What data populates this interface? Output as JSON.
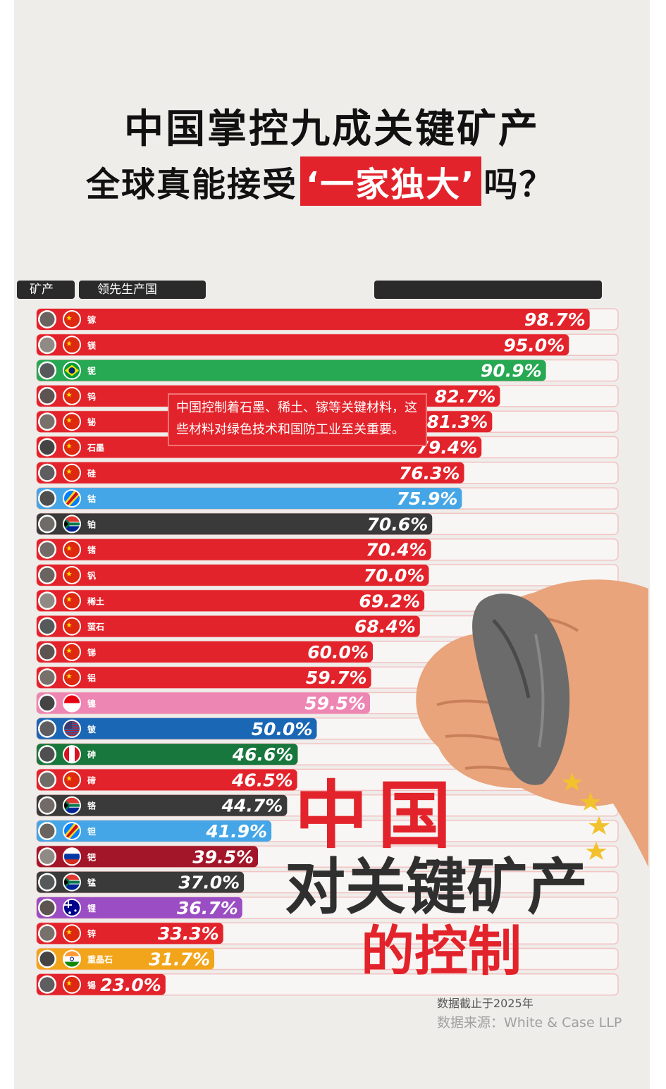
{
  "title": {
    "line1": "中国掌控九成关键矿产",
    "line2_pre": "全球真能接受",
    "line2_highlight": "‘一家独大’",
    "line2_post": "吗？"
  },
  "headers": {
    "mineral": "矿产",
    "country": "领先生产国",
    "share": ""
  },
  "note": "中国控制着石墨、稀土、镓等关键材料，这些材料对绿色技术和国防工业至关重要。",
  "overlay": {
    "line1": "中国",
    "line2": "对关键矿产",
    "line3": "的控制"
  },
  "footer": {
    "date_note": "数据截止于2025年",
    "source": "数据来源：White & Case LLP"
  },
  "colors": {
    "red": "#e3232b",
    "green": "#27a852",
    "light_blue": "#44a6e6",
    "dark": "#3a3a3a",
    "pink": "#ee86b4",
    "blue": "#1a67b5",
    "dark_green": "#18773c",
    "dark_red": "#a3162a",
    "purple": "#9b4dc3",
    "orange": "#f2a51a",
    "background": "#efedea"
  },
  "chart_data": {
    "type": "bar",
    "orientation": "horizontal",
    "unit": "%",
    "xlim": [
      0,
      100
    ],
    "categories": [
      "镓",
      "镁",
      "铌",
      "钨",
      "铋",
      "石墨",
      "硅",
      "钴",
      "铂",
      "锗",
      "钒",
      "稀土",
      "萤石",
      "锑",
      "铝",
      "镍",
      "铍",
      "砷",
      "碲",
      "铬",
      "钽",
      "钯",
      "锰",
      "锂",
      "锌",
      "重晶石",
      "锡"
    ],
    "values": [
      98.7,
      95.0,
      90.9,
      82.7,
      81.3,
      79.4,
      76.3,
      75.9,
      70.6,
      70.4,
      70.0,
      69.2,
      68.4,
      60.0,
      59.7,
      59.5,
      50.0,
      46.6,
      46.5,
      44.7,
      41.9,
      39.5,
      37.0,
      36.7,
      33.3,
      31.7,
      23.0
    ],
    "value_labels": [
      "98.7%",
      "95.0%",
      "90.9%",
      "82.7%",
      "81.3%",
      "79.4%",
      "76.3%",
      "75.9%",
      "70.6%",
      "70.4%",
      "70.0%",
      "69.2%",
      "68.4%",
      "60.0%",
      "59.7%",
      "59.5%",
      "50.0%",
      "46.6%",
      "46.5%",
      "44.7%",
      "41.9%",
      "39.5%",
      "37.0%",
      "36.7%",
      "33.3%",
      "31.7%",
      "23.0%"
    ],
    "leading_country_flags": [
      "china-flag",
      "china-flag",
      "brazil-flag",
      "china-flag",
      "china-flag",
      "china-flag",
      "china-flag",
      "drc-flag",
      "south-africa-flag",
      "china-flag",
      "china-flag",
      "china-flag",
      "china-flag",
      "china-flag",
      "china-flag",
      "indonesia-flag",
      "usa-flag",
      "peru-flag",
      "china-flag",
      "south-africa-flag",
      "drc-flag",
      "russia-flag",
      "south-africa-flag",
      "australia-flag",
      "china-flag",
      "india-flag",
      "china-flag"
    ],
    "bar_colors": [
      "red",
      "red",
      "green",
      "red",
      "red",
      "red",
      "red",
      "light_blue",
      "dark",
      "red",
      "red",
      "red",
      "red",
      "red",
      "red",
      "pink",
      "blue",
      "dark_green",
      "red",
      "dark",
      "light_blue",
      "dark_red",
      "dark",
      "purple",
      "red",
      "orange",
      "red"
    ]
  }
}
